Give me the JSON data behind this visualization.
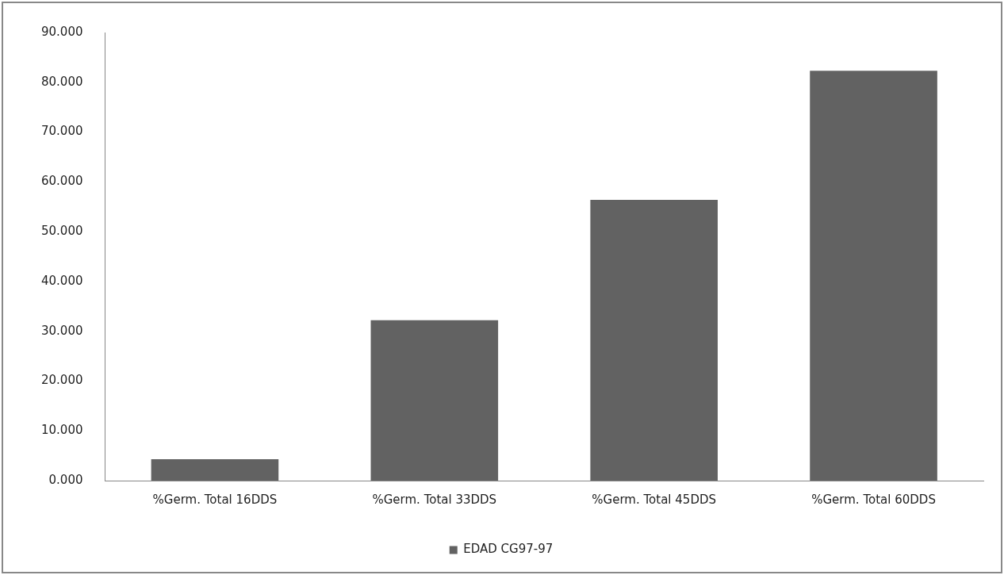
{
  "chart_data": {
    "type": "bar",
    "categories": [
      "%Germ. Total 16DDS",
      "%Germ. Total 33DDS",
      "%Germ. Total 45DDS",
      "%Germ. Total 60DDS"
    ],
    "series": [
      {
        "name": "EDAD CG97-97",
        "color": "#626262",
        "values": [
          4.3,
          32.2,
          56.4,
          82.3
        ]
      }
    ],
    "ylim": [
      0,
      90
    ],
    "yticks": [
      {
        "value": 0,
        "label": "0.000"
      },
      {
        "value": 10,
        "label": "10.000"
      },
      {
        "value": 20,
        "label": "20.000"
      },
      {
        "value": 30,
        "label": "30.000"
      },
      {
        "value": 40,
        "label": "40.000"
      },
      {
        "value": 50,
        "label": "50.000"
      },
      {
        "value": 60,
        "label": "60.000"
      },
      {
        "value": 70,
        "label": "70.000"
      },
      {
        "value": 80,
        "label": "80.000"
      },
      {
        "value": 90,
        "label": "90.000"
      }
    ],
    "grid": false,
    "legend": "bottom"
  }
}
